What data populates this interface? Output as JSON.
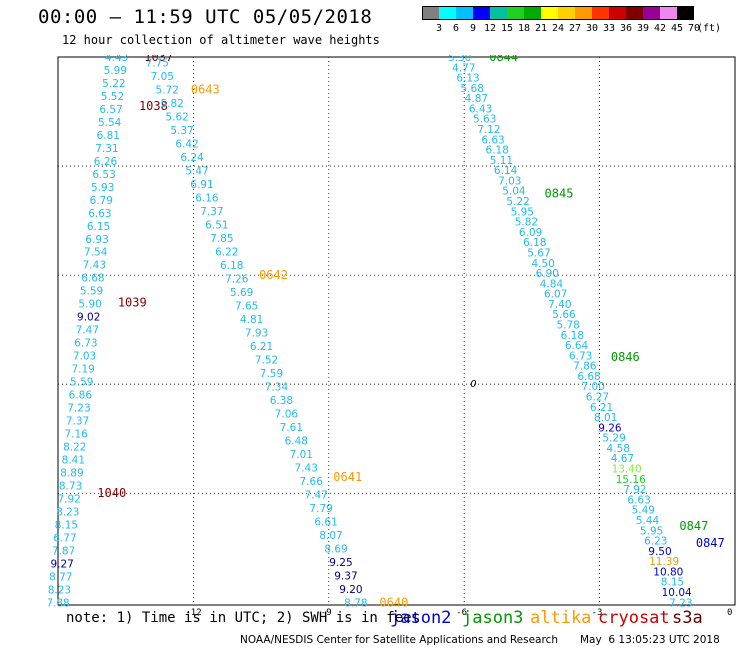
{
  "title": "00:00 – 11:59 UTC 05/05/2018",
  "subtitle": "12 hour collection of altimeter wave heights",
  "colorbar": {
    "unit": "(ft)",
    "labels": [
      "3",
      "6",
      "9",
      "12",
      "15",
      "18",
      "21",
      "24",
      "27",
      "30",
      "33",
      "36",
      "39",
      "42",
      "45",
      "70"
    ],
    "colors": [
      "#808080",
      "#00ffff",
      "#00bfff",
      "#0000ff",
      "#00c0a0",
      "#20d020",
      "#00aa00",
      "#ffff00",
      "#ffd000",
      "#ff9900",
      "#ff3300",
      "#cc0000",
      "#800000",
      "#990099",
      "#ee88ee",
      "#000000"
    ]
  },
  "axes": {
    "y_ticks": [
      "-10",
      "-12",
      "-14",
      "-16",
      "-18",
      "-20"
    ],
    "y_bottom": "-15",
    "x_ticks": [
      "-12",
      "-9",
      "-6",
      "-3",
      "0"
    ]
  },
  "note": "note: 1) Time is in UTC; 2) SWH is in feet",
  "legend": [
    {
      "name": "jason2",
      "color": "#0000cc"
    },
    {
      "name": "jason3",
      "color": "#009900"
    },
    {
      "name": "altika",
      "color": "#ff9900"
    },
    {
      "name": "cryosat",
      "color": "#cc0000"
    },
    {
      "name": "s3a",
      "color": "#660000"
    }
  ],
  "credit": "NOAA/NESDIS Center for Satellite Applications and Research",
  "timestamp": "May  6 13:05:23 UTC 2018",
  "zero_marker": "0",
  "tracks": {
    "track1": {
      "color": "#22bbee",
      "x_start": -13.7,
      "x_end": -15.0,
      "lat_start": -10.0,
      "lat_end": -20.0,
      "values": [
        "4.43",
        "5.99",
        "5.22",
        "5.52",
        "6.57",
        "5.54",
        "6.81",
        "7.31",
        "6.26",
        "6.53",
        "5.93",
        "6.79",
        "6.63",
        "6.15",
        "6.93",
        "7.54",
        "7.43",
        "6.68",
        "5.59",
        "5.90",
        "9.02",
        "7.47",
        "6.73",
        "7.03",
        "7.19",
        "5.59",
        "6.86",
        "7.23",
        "7.37",
        "7.16",
        "8.22",
        "8.41",
        "8.89",
        "8.73",
        "7.92",
        "8.23",
        "8.15",
        "6.77",
        "7.87",
        "9.27",
        "8.77",
        "8.23",
        "7.88"
      ],
      "special": {
        "9.02": "#00008b",
        "9.27": "#00008b"
      },
      "passes": [
        {
          "label": "1037",
          "lat": -10.0,
          "color": "#800000"
        },
        {
          "label": "1038",
          "lat": -10.9,
          "color": "#800000"
        },
        {
          "label": "1039",
          "lat": -14.5,
          "color": "#800000"
        },
        {
          "label": "1040",
          "lat": -18.0,
          "color": "#800000"
        }
      ]
    },
    "track2": {
      "color": "#22bbee",
      "x_start": -12.8,
      "x_end": -8.4,
      "lat_start": -10.1,
      "lat_end": -20.0,
      "values": [
        "7.75",
        "7.05",
        "5.72",
        "5.82",
        "5.62",
        "5.37",
        "6.42",
        "6.24",
        "5.47",
        "6.91",
        "6.16",
        "7.37",
        "6.51",
        "7.85",
        "6.22",
        "6.18",
        "7.26",
        "5.69",
        "7.65",
        "4.81",
        "7.93",
        "6.21",
        "7.52",
        "7.59",
        "7.34",
        "6.38",
        "7.06",
        "7.61",
        "6.48",
        "7.01",
        "7.43",
        "7.66",
        "7.47",
        "7.79",
        "6.61",
        "8.07",
        "8.69",
        "9.25",
        "9.37",
        "9.20",
        "8.78"
      ],
      "special": {
        "9.25": "#00008b",
        "9.37": "#00008b",
        "9.20": "#00008b"
      },
      "passes": [
        {
          "label": "0643",
          "lat": -10.6,
          "color": "#ff9900"
        },
        {
          "label": "0642",
          "lat": -14.0,
          "color": "#ff9900"
        },
        {
          "label": "0641",
          "lat": -17.7,
          "color": "#ff9900"
        },
        {
          "label": "0640",
          "lat": -20.0,
          "color": "#ff9900"
        }
      ]
    },
    "track3": {
      "color": "#22bbee",
      "x_start": -6.1,
      "x_end": -1.2,
      "lat_start": -10.0,
      "lat_end": -20.0,
      "values": [
        "5.30",
        "4.77",
        "6.13",
        "5.68",
        "4.87",
        "6.43",
        "5.63",
        "7.12",
        "6.63",
        "6.18",
        "5.11",
        "6.14",
        "7.03",
        "5.04",
        "5.22",
        "5.95",
        "5.82",
        "6.09",
        "6.18",
        "5.67",
        "4.50",
        "6.90",
        "4.84",
        "6.07",
        "7.40",
        "5.66",
        "5.78",
        "6.18",
        "6.64",
        "6.73",
        "7.86",
        "6.68",
        "7.00",
        "6.27",
        "6.21",
        "8.01",
        "9.26",
        "5.29",
        "4.58",
        "4.67",
        "13.40",
        "15.16",
        "7.92",
        "6.63",
        "5.49",
        "5.44",
        "5.95",
        "6.23",
        "9.50",
        "11.39",
        "10.80",
        "8.15",
        "10.04",
        "7.23"
      ],
      "special": {
        "9.26": "#0000cc",
        "13.40": "#88ee44",
        "15.16": "#20d020",
        "9.50": "#0000cc",
        "11.39": "#ff9900",
        "10.80": "#0000cc",
        "10.04": "#0000cc"
      },
      "passes": [
        {
          "label": "0844",
          "lat": -10.0,
          "color": "#009900"
        },
        {
          "label": "0845",
          "lat": -12.5,
          "color": "#009900"
        },
        {
          "label": "0846",
          "lat": -15.5,
          "color": "#009900"
        },
        {
          "label": "0847",
          "lat": -18.6,
          "color": "#009900"
        },
        {
          "label": "0847",
          "lat": -18.8,
          "color": "#0000cc"
        }
      ]
    }
  }
}
